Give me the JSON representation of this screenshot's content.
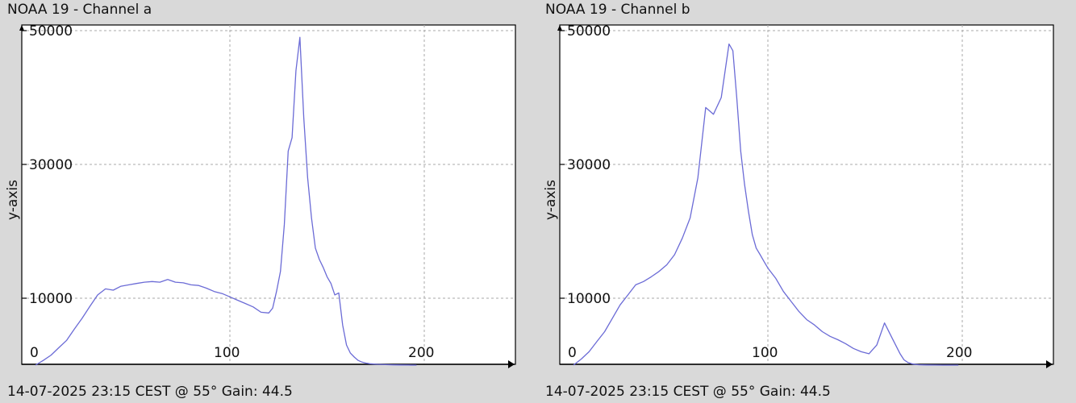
{
  "chart_data": [
    {
      "type": "line",
      "title": "NOAA 19 - Channel a",
      "ylabel": "y-axis",
      "footer": "14-07-2025 23:15 CEST @ 55° Gain: 44.5",
      "xlim": [
        0,
        270
      ],
      "ylim": [
        0,
        50000
      ],
      "x_ticks": [
        0,
        100,
        200
      ],
      "y_ticks": [
        10000,
        30000,
        50000
      ],
      "grid": true,
      "line_color": "#6b6bd6",
      "series": [
        {
          "x": [
            0,
            4,
            8,
            12,
            16,
            20,
            24,
            28,
            32,
            36,
            40,
            44,
            48,
            52,
            56,
            60,
            64,
            68,
            72,
            76,
            80,
            84,
            88,
            92,
            96,
            100,
            104,
            108,
            112,
            116,
            120,
            122,
            124,
            126,
            128,
            130,
            132,
            134,
            136,
            138,
            140,
            142,
            144,
            146,
            148,
            150,
            152,
            154,
            156,
            158,
            160,
            162,
            164,
            166,
            168,
            170,
            172,
            176,
            180,
            184,
            188,
            192,
            196
          ],
          "y": [
            0,
            700,
            1500,
            2600,
            3700,
            5400,
            7000,
            8800,
            10500,
            11400,
            11200,
            11800,
            12000,
            12200,
            12400,
            12500,
            12400,
            12800,
            12400,
            12300,
            12000,
            11900,
            11500,
            11000,
            10700,
            10200,
            9700,
            9200,
            8700,
            7900,
            7800,
            8500,
            11000,
            14000,
            21000,
            32000,
            34000,
            44000,
            49000,
            37000,
            28000,
            22000,
            17500,
            15800,
            14600,
            13200,
            12200,
            10500,
            10800,
            6000,
            3000,
            1800,
            1200,
            700,
            450,
            300,
            200,
            120,
            70,
            40,
            20,
            10,
            0
          ]
        }
      ]
    },
    {
      "type": "line",
      "title": "NOAA 19 - Channel b",
      "ylabel": "y-axis",
      "footer": "14-07-2025 23:15 CEST @ 55° Gain: 44.5",
      "xlim": [
        0,
        270
      ],
      "ylim": [
        0,
        50000
      ],
      "x_ticks": [
        0,
        100,
        200
      ],
      "y_ticks": [
        10000,
        30000,
        50000
      ],
      "grid": true,
      "line_color": "#6b6bd6",
      "series": [
        {
          "x": [
            0,
            4,
            8,
            12,
            16,
            20,
            24,
            28,
            32,
            36,
            40,
            44,
            48,
            52,
            56,
            60,
            64,
            68,
            72,
            76,
            80,
            82,
            84,
            86,
            88,
            90,
            92,
            94,
            96,
            98,
            100,
            104,
            108,
            112,
            116,
            120,
            124,
            128,
            132,
            136,
            140,
            144,
            148,
            152,
            156,
            160,
            164,
            168,
            170,
            172,
            174,
            176,
            178,
            182,
            186,
            190,
            194,
            198
          ],
          "y": [
            0,
            900,
            2000,
            3500,
            5000,
            7000,
            9000,
            10500,
            12000,
            12500,
            13200,
            14000,
            15000,
            16500,
            19000,
            22000,
            28000,
            38500,
            37500,
            40000,
            48000,
            47000,
            40000,
            32000,
            27000,
            23000,
            19500,
            17500,
            16500,
            15500,
            14500,
            13000,
            11000,
            9500,
            8000,
            6800,
            6000,
            5000,
            4300,
            3800,
            3200,
            2500,
            2000,
            1700,
            3000,
            6300,
            4000,
            1700,
            800,
            400,
            200,
            100,
            50,
            20,
            10,
            5,
            2,
            0
          ]
        }
      ]
    }
  ]
}
